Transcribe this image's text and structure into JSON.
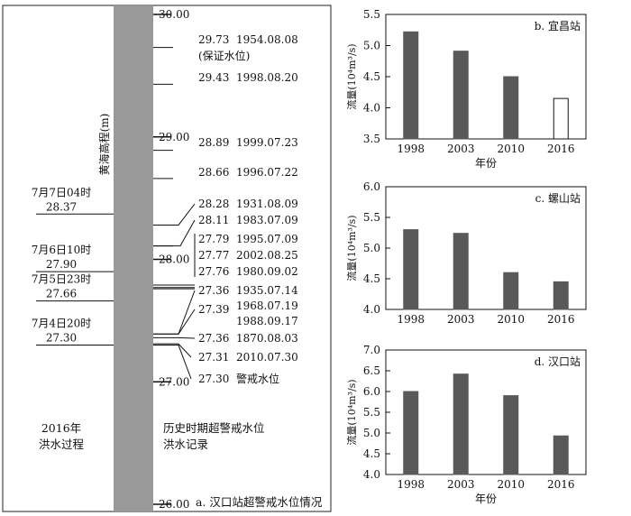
{
  "panel_a": {
    "ylabel": "黄海高程(m)",
    "left_caption": [
      "2016年",
      "洪水过程"
    ],
    "right_caption": [
      "历史时期超警戒水位",
      "洪水记录"
    ],
    "title": "a. 汉口站超警戒水位情况",
    "ticks": [
      "30.00",
      "29.00",
      "28.00",
      "27.00",
      "26.00"
    ],
    "events_2016": [
      {
        "label": "7月7日04时",
        "value": "28.37",
        "level": 28.37
      },
      {
        "label": "7月6日10时",
        "value": "27.90",
        "level": 27.9
      },
      {
        "label": "7月5日23时",
        "value": "27.66",
        "level": 27.66
      },
      {
        "label": "7月4日20时",
        "value": "27.30",
        "level": 27.3
      }
    ],
    "history": [
      {
        "value": "29.73",
        "date": "1954.08.08",
        "note": "(保证水位)",
        "level": 29.73
      },
      {
        "value": "29.43",
        "date": "1998.08.20",
        "level": 29.43
      },
      {
        "value": "28.89",
        "date": "1999.07.23",
        "level": 28.89
      },
      {
        "value": "28.66",
        "date": "1996.07.22",
        "level": 28.66
      },
      {
        "value": "28.28",
        "date": "1931.08.09",
        "level": 28.28
      },
      {
        "value": "28.11",
        "date": "1983.07.09",
        "level": 28.11
      },
      {
        "value": "27.79",
        "date": "1995.07.09",
        "level": 27.79
      },
      {
        "value": "27.77",
        "date": "2002.08.25",
        "level": 27.77
      },
      {
        "value": "27.76",
        "date": "1980.09.02",
        "level": 27.76
      },
      {
        "value": "27.36",
        "date": "1935.07.14",
        "level": 27.36
      },
      {
        "value": "27.39",
        "date": "1968.07.19",
        "date2": "1988.09.17",
        "level": 27.39
      },
      {
        "value": "27.36",
        "date": "1870.08.03",
        "level": 27.36
      },
      {
        "value": "27.31",
        "date": "2010.07.30",
        "level": 27.31
      },
      {
        "value": "27.30",
        "date": "警戒水位",
        "level": 27.3
      }
    ]
  },
  "chart_data": [
    {
      "type": "bar",
      "title": "b. 宜昌站",
      "categories": [
        "1998",
        "2003",
        "2010",
        "2016"
      ],
      "values": [
        5.22,
        4.91,
        4.5,
        4.15
      ],
      "hollow_last": true,
      "ylabel": "流量(10⁴m³/s)",
      "xlabel": "年份",
      "ylim": [
        3.5,
        5.5
      ],
      "yticks": [
        "3.5",
        "4.0",
        "4.5",
        "5.0",
        "5.5"
      ]
    },
    {
      "type": "bar",
      "title": "c. 螺山站",
      "categories": [
        "1998",
        "2003",
        "2010",
        "2016"
      ],
      "values": [
        5.3,
        5.24,
        4.6,
        4.45
      ],
      "ylabel": "流量(10⁴m³/s)",
      "xlabel": "",
      "ylim": [
        4.0,
        6.0
      ],
      "yticks": [
        "4.0",
        "4.5",
        "5.0",
        "5.5",
        "6.0"
      ]
    },
    {
      "type": "bar",
      "title": "d. 汉口站",
      "categories": [
        "1998",
        "2003",
        "2010",
        "2016"
      ],
      "values": [
        6.0,
        6.42,
        5.9,
        4.93
      ],
      "ylabel": "流量(10⁴m³/s)",
      "xlabel": "年份",
      "ylim": [
        4.0,
        7.0
      ],
      "yticks": [
        "4.0",
        "4.5",
        "5.0",
        "5.5",
        "6.0",
        "6.5",
        "7.0"
      ]
    }
  ]
}
